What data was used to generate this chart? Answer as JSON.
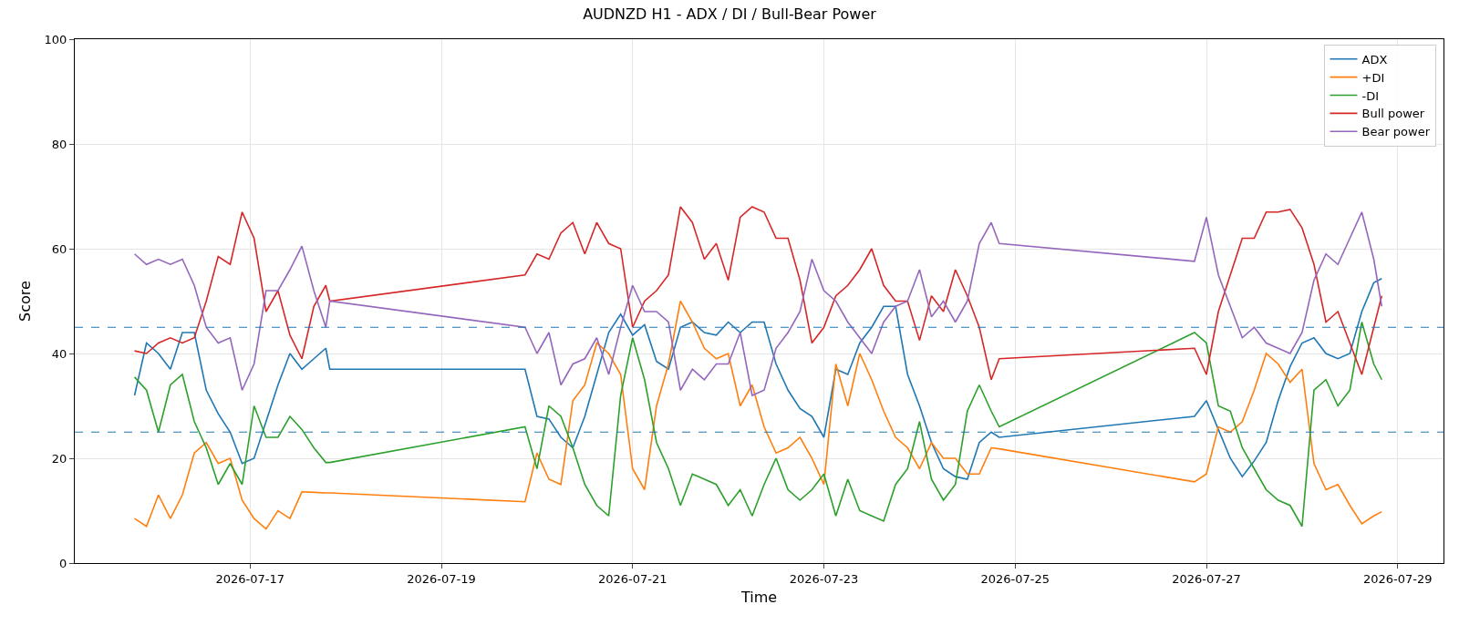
{
  "chart_data": {
    "type": "line",
    "title": "AUDNZD H1 - ADX / DI / Bull-Bear Power",
    "xlabel": "Time",
    "ylabel": "Score",
    "x": [
      "2026-07-15T19:00",
      "2026-07-15T22:00",
      "2026-07-16T01:00",
      "2026-07-16T04:00",
      "2026-07-16T07:00",
      "2026-07-16T10:00",
      "2026-07-16T13:00",
      "2026-07-16T16:00",
      "2026-07-16T19:00",
      "2026-07-16T22:00",
      "2026-07-17T01:00",
      "2026-07-17T04:00",
      "2026-07-17T07:00",
      "2026-07-17T10:00",
      "2026-07-17T13:00",
      "2026-07-17T16:00",
      "2026-07-17T19:00",
      "2026-07-17T20:00",
      "2026-07-19T21:00",
      "2026-07-20T00:00",
      "2026-07-20T03:00",
      "2026-07-20T06:00",
      "2026-07-20T09:00",
      "2026-07-20T12:00",
      "2026-07-20T15:00",
      "2026-07-20T18:00",
      "2026-07-20T21:00",
      "2026-07-21T00:00",
      "2026-07-21T03:00",
      "2026-07-21T06:00",
      "2026-07-21T09:00",
      "2026-07-21T12:00",
      "2026-07-21T15:00",
      "2026-07-21T18:00",
      "2026-07-21T21:00",
      "2026-07-22T00:00",
      "2026-07-22T03:00",
      "2026-07-22T06:00",
      "2026-07-22T09:00",
      "2026-07-22T12:00",
      "2026-07-22T15:00",
      "2026-07-22T18:00",
      "2026-07-22T21:00",
      "2026-07-23T00:00",
      "2026-07-23T03:00",
      "2026-07-23T06:00",
      "2026-07-23T09:00",
      "2026-07-23T12:00",
      "2026-07-23T15:00",
      "2026-07-23T18:00",
      "2026-07-23T21:00",
      "2026-07-24T00:00",
      "2026-07-24T03:00",
      "2026-07-24T06:00",
      "2026-07-24T09:00",
      "2026-07-24T12:00",
      "2026-07-24T15:00",
      "2026-07-24T18:00",
      "2026-07-24T20:00",
      "2026-07-26T21:00",
      "2026-07-27T00:00",
      "2026-07-27T03:00",
      "2026-07-27T06:00",
      "2026-07-27T09:00",
      "2026-07-27T12:00",
      "2026-07-27T15:00",
      "2026-07-27T18:00",
      "2026-07-27T21:00",
      "2026-07-28T00:00",
      "2026-07-28T03:00",
      "2026-07-28T06:00",
      "2026-07-28T09:00",
      "2026-07-28T12:00",
      "2026-07-28T15:00",
      "2026-07-28T18:00",
      "2026-07-28T20:00"
    ],
    "series": [
      {
        "name": "ADX",
        "color": "#1f77b4",
        "values": [
          32,
          42,
          40,
          37,
          44,
          44,
          33,
          28.5,
          25,
          19,
          20,
          27,
          34,
          40,
          37,
          39,
          41,
          37,
          37,
          28,
          27.5,
          24,
          22,
          28,
          36,
          44,
          47.5,
          43.5,
          45.5,
          38.5,
          37,
          45,
          46,
          44,
          43.5,
          46,
          44,
          46,
          46,
          38,
          33,
          29.5,
          28,
          24,
          37,
          36,
          42,
          45,
          49,
          49,
          36,
          30,
          23,
          18,
          16.5,
          16,
          23,
          25,
          24,
          28,
          31,
          25.5,
          20,
          16.5,
          19.5,
          23,
          31,
          37.5,
          42,
          43,
          40,
          39,
          40,
          48,
          53.5,
          54.3
        ]
      },
      {
        "name": "+DI",
        "color": "#ff7f0e",
        "values": [
          8.5,
          7,
          13,
          8.5,
          13,
          21,
          23,
          19,
          20,
          12,
          8.5,
          6.5,
          10,
          8.5,
          13.6,
          13.5,
          13.4,
          13.4,
          11.7,
          21,
          16,
          15,
          31,
          34,
          42,
          40,
          36,
          18,
          14,
          30,
          38,
          50,
          46,
          41,
          39,
          40,
          30,
          34,
          26,
          21,
          22,
          24,
          20,
          15,
          38,
          30,
          40,
          35,
          29,
          24,
          22,
          18,
          23,
          20,
          20,
          17,
          17,
          22,
          21.8,
          15.5,
          17,
          26,
          25,
          27,
          33,
          40,
          38,
          34.5,
          37,
          19,
          14,
          15,
          11,
          7.5,
          9,
          9.8
        ]
      },
      {
        "name": "-DI",
        "color": "#2ca02c",
        "values": [
          35.5,
          33,
          25,
          34,
          36,
          27,
          22,
          15,
          19,
          15,
          30,
          24,
          24,
          28,
          25.5,
          22,
          19.2,
          19.2,
          26,
          18,
          30,
          28,
          22,
          15,
          11,
          9,
          32,
          43,
          35,
          23,
          18,
          11,
          17,
          16,
          15,
          11,
          14,
          9,
          15,
          20,
          14,
          12,
          14,
          17,
          9,
          16,
          10,
          9,
          8,
          15,
          18,
          27,
          16,
          12,
          15,
          29,
          34,
          29,
          26,
          44,
          42,
          30,
          29,
          22,
          18,
          14,
          12,
          11,
          7,
          33,
          35,
          30,
          33,
          46,
          38,
          35
        ]
      },
      {
        "name": "Bull power",
        "color": "#d62728",
        "values": [
          40.5,
          40,
          42,
          43,
          42,
          43,
          50,
          58.5,
          57,
          67,
          62,
          48,
          52,
          43.5,
          39,
          49,
          53,
          50,
          55,
          59,
          58,
          63,
          65,
          59,
          65,
          61,
          60,
          45,
          50,
          52,
          55,
          68,
          65,
          58,
          61,
          54,
          66,
          68,
          67,
          62,
          62,
          54,
          42,
          45,
          51,
          53,
          56,
          60,
          53,
          50,
          50,
          42.5,
          51,
          48,
          56,
          51,
          45,
          35,
          39,
          41,
          36,
          48,
          55,
          62,
          62,
          67,
          67,
          67.5,
          64,
          57,
          46,
          48,
          42,
          36,
          45,
          51
        ]
      },
      {
        "name": "Bear power",
        "color": "#9467bd",
        "values": [
          59,
          57,
          58,
          57,
          58,
          53,
          45,
          42,
          43,
          33,
          38,
          52,
          52,
          56,
          60.5,
          52,
          45,
          50,
          45,
          40,
          44,
          34,
          38,
          39,
          43,
          36,
          45,
          53,
          48,
          48,
          46,
          33,
          37,
          35,
          38,
          38,
          44,
          32,
          33,
          41,
          44,
          48,
          58,
          52,
          50,
          46,
          43,
          40,
          46,
          49,
          50,
          56,
          47,
          50,
          46,
          50,
          61,
          65,
          61,
          57.6,
          66,
          55,
          49,
          43,
          45,
          42,
          41,
          40,
          44,
          54,
          59,
          57,
          62,
          67,
          58,
          49
        ]
      }
    ],
    "ref_lines": [
      {
        "axis": "y",
        "value": 45,
        "color": "#1f77b4",
        "line_style": "dashed"
      },
      {
        "axis": "y",
        "value": 25,
        "color": "#1f77b4",
        "line_style": "dashed"
      }
    ],
    "xlim": [
      "2026-07-15T04:00",
      "2026-07-29T11:30"
    ],
    "xticks": [
      {
        "value": "2026-07-17",
        "label": "2026-07-17"
      },
      {
        "value": "2026-07-19",
        "label": "2026-07-19"
      },
      {
        "value": "2026-07-21",
        "label": "2026-07-21"
      },
      {
        "value": "2026-07-23",
        "label": "2026-07-23"
      },
      {
        "value": "2026-07-25",
        "label": "2026-07-25"
      },
      {
        "value": "2026-07-27",
        "label": "2026-07-27"
      },
      {
        "value": "2026-07-29",
        "label": "2026-07-29"
      }
    ],
    "ylim": [
      0,
      100
    ],
    "yticks": [
      0,
      20,
      40,
      60,
      80,
      100
    ],
    "grid": true,
    "legend": "top right",
    "marker": "none",
    "line_style": "solid"
  }
}
